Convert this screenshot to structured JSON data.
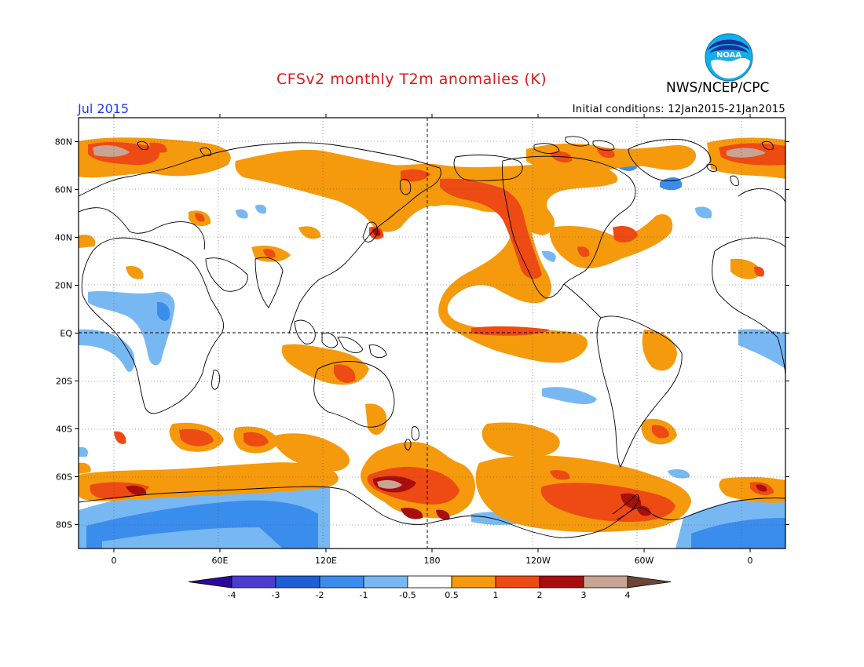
{
  "header": {
    "title": "CFSv2 monthly T2m anomalies (K)",
    "agency": "NWS/NCEP/CPC",
    "month": "Jul 2015",
    "initial_conditions": "Initial conditions: 12Jan2015-21Jan2015",
    "logo_text": "NOAA"
  },
  "axes": {
    "lat_labels": [
      "80N",
      "60N",
      "40N",
      "20N",
      "EQ",
      "20S",
      "40S",
      "60S",
      "80S"
    ],
    "lat_values": [
      80,
      60,
      40,
      20,
      0,
      -20,
      -40,
      -60,
      -80
    ],
    "lon_labels": [
      "0",
      "60E",
      "120E",
      "180",
      "120W",
      "60W",
      "0"
    ],
    "lon_values": [
      0,
      60,
      120,
      180,
      240,
      300,
      360
    ]
  },
  "colorbar": {
    "labels": [
      "-4",
      "-3",
      "-2",
      "-1",
      "-0.5",
      "0.5",
      "1",
      "2",
      "3",
      "4"
    ],
    "colors": [
      "#2b0a9b",
      "#4b3cd0",
      "#1e5fd8",
      "#3b8ded",
      "#78b8f2",
      "#ffffff",
      "#f59a0c",
      "#ee4a14",
      "#a80e0e",
      "#c7a493",
      "#6b4636"
    ]
  },
  "chart_data": {
    "type": "heatmap",
    "title": "CFSv2 monthly T2m anomalies (K)",
    "variable": "T2m anomalies (K)",
    "valid": "Jul 2015",
    "xlabel": "",
    "ylabel": "",
    "x_range": [
      -20,
      380
    ],
    "y_range": [
      -90,
      90
    ],
    "levels": [
      -4,
      -3,
      -2,
      -1,
      -0.5,
      0.5,
      1,
      2,
      3,
      4
    ],
    "features": [
      {
        "region": "Southern Ocean 160E-150W",
        "lon": 165,
        "lat": -66,
        "value": 3.5
      },
      {
        "region": "Antarctic Peninsula / Weddell",
        "lon": 300,
        "lat": -68,
        "value": 2.5
      },
      {
        "region": "Arctic Barents Sea",
        "lon": 20,
        "lat": 76,
        "value": 3.5
      },
      {
        "region": "Eastern Antarctica",
        "lon": 60,
        "lat": -80,
        "value": -1.5
      },
      {
        "region": "Central Africa",
        "lon": 20,
        "lat": 10,
        "value": -0.8
      },
      {
        "region": "North Pacific",
        "lon": 210,
        "lat": 45,
        "value": 0.8
      },
      {
        "region": "NE Pacific coast",
        "lon": 230,
        "lat": 45,
        "value": 1.5
      },
      {
        "region": "Equatorial East Pacific",
        "lon": 240,
        "lat": 0,
        "value": 1.5
      }
    ]
  }
}
